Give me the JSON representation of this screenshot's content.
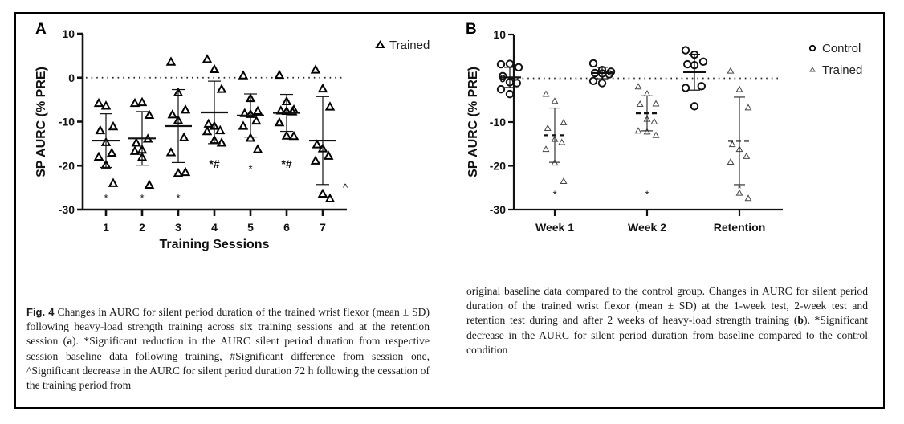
{
  "figure": {
    "label": "Fig. 4",
    "caption_left": "Changes in AURC for silent period duration of the trained wrist flexor (mean ± SD) following heavy-load strength training across six training sessions and at the retention session (a). *Significant reduction in the AURC silent period duration from respective session baseline data following training, #Significant difference from session one, ^Significant decrease in the AURC for silent period duration 72 h following the cessation of the training period from",
    "caption_right": "original baseline data compared to the control group. Changes in AURC for silent period duration of the trained wrist flexor (mean ± SD) at the 1-week test, 2-week test and retention test during and after 2 weeks of heavy-load strength training (b). *Significant decrease in the AURC for silent period duration from baseline compared to the control condition",
    "caption_left_html_parts": {
      "a_bold": "a",
      "b_bold": "b"
    }
  },
  "chart_data": [
    {
      "panel": "A",
      "type": "scatter",
      "title": "",
      "xlabel": "Training Sessions",
      "ylabel": "SP AURC (% PRE)",
      "ylim": [
        -30,
        10
      ],
      "yticks": [
        10,
        0,
        -10,
        -20,
        -30
      ],
      "categories": [
        "1",
        "2",
        "3",
        "4",
        "5",
        "6",
        "7"
      ],
      "reference_line": 0,
      "legend": {
        "position": "top-right",
        "entries": [
          {
            "name": "Trained",
            "marker": "filled-triangle"
          }
        ]
      },
      "series": [
        {
          "name": "Trained",
          "marker": "triangle",
          "points": [
            [
              -5.8,
              -6.4,
              -11.1,
              -12.0,
              -14.7,
              -17.1,
              -18.0,
              -19.8,
              -24.0
            ],
            [
              -5.8,
              -5.6,
              -8.5,
              -14.8,
              -16.4,
              -13.9,
              -16.7,
              -18.1,
              -24.4
            ],
            [
              3.6,
              -3.4,
              -7.3,
              -8.4,
              -9.7,
              -13.6,
              -17.0,
              -21.7,
              -21.5
            ],
            [
              4.2,
              1.9,
              -2.6,
              -10.5,
              -11.0,
              -12.0,
              -12.2,
              -14.2,
              -14.8
            ],
            [
              0.5,
              -4.7,
              -7.6,
              -8.1,
              -8.3,
              -9.8,
              -11.0,
              -13.7,
              -16.3
            ],
            [
              0.6,
              -5.4,
              -7.3,
              -7.5,
              -7.6,
              -7.7,
              -10.2,
              -13.2,
              -13.3
            ],
            [
              1.8,
              -2.5,
              -6.6,
              -15.2,
              -16.1,
              -17.8,
              -18.9,
              -26.4,
              -27.5
            ]
          ],
          "mean": [
            -14.3,
            -13.8,
            -11.0,
            -7.9,
            -8.6,
            -8.0,
            -14.3
          ],
          "sd": [
            6.1,
            6.1,
            8.3,
            7.1,
            4.9,
            4.2,
            10.0
          ]
        }
      ],
      "annotations": [
        {
          "category": "1",
          "text": "*"
        },
        {
          "category": "2",
          "text": "*"
        },
        {
          "category": "3",
          "text": "*"
        },
        {
          "category": "4",
          "text": "*#"
        },
        {
          "category": "5",
          "text": "*"
        },
        {
          "category": "6",
          "text": "*#"
        },
        {
          "category": "7",
          "text": "^"
        }
      ]
    },
    {
      "panel": "B",
      "type": "scatter",
      "title": "",
      "xlabel": "",
      "ylabel": "SP AURC (% PRE)",
      "ylim": [
        -30,
        10
      ],
      "yticks": [
        10,
        0,
        -10,
        -20,
        -30
      ],
      "categories": [
        "Week 1",
        "Week 2",
        "Retention"
      ],
      "reference_line": 0,
      "legend": {
        "position": "top-right",
        "entries": [
          {
            "name": "Control",
            "marker": "circle"
          },
          {
            "name": "Trained",
            "marker": "triangle"
          }
        ]
      },
      "series": [
        {
          "name": "Control",
          "marker": "circle",
          "points": [
            [
              3.2,
              3.3,
              2.5,
              0.5,
              -0.9,
              -1.1,
              -2.5,
              -3.6
            ],
            [
              3.4,
              1.9,
              1.5,
              1.2,
              1.1,
              0.9,
              -0.6,
              -1.1
            ],
            [
              6.4,
              5.4,
              3.8,
              3.2,
              3.0,
              -1.8,
              -2.2,
              -6.4
            ]
          ],
          "mean": [
            0.2,
            1.2,
            1.4
          ],
          "sd": [
            2.3,
            1.3,
            4.1
          ]
        },
        {
          "name": "Trained",
          "marker": "triangle",
          "points": [
            [
              -3.6,
              -5.2,
              -10.1,
              -11.4,
              -13.9,
              -14.6,
              -16.2,
              -19.3,
              -23.5
            ],
            [
              -1.9,
              -3.5,
              -5.8,
              -5.9,
              -9.3,
              -9.9,
              -12.0,
              -12.2,
              -13.0
            ],
            [
              1.7,
              -2.5,
              -6.7,
              -15.1,
              -16.2,
              -17.8,
              -19.1,
              -26.2,
              -27.4
            ]
          ],
          "mean": [
            -13.0,
            -8.0,
            -14.3
          ],
          "sd": [
            6.2,
            4.0,
            10.0
          ]
        }
      ],
      "annotations": [
        {
          "category": "Week 1",
          "text": "*"
        },
        {
          "category": "Week 2",
          "text": "*"
        },
        {
          "category": "Retention",
          "text": "*"
        }
      ]
    }
  ]
}
